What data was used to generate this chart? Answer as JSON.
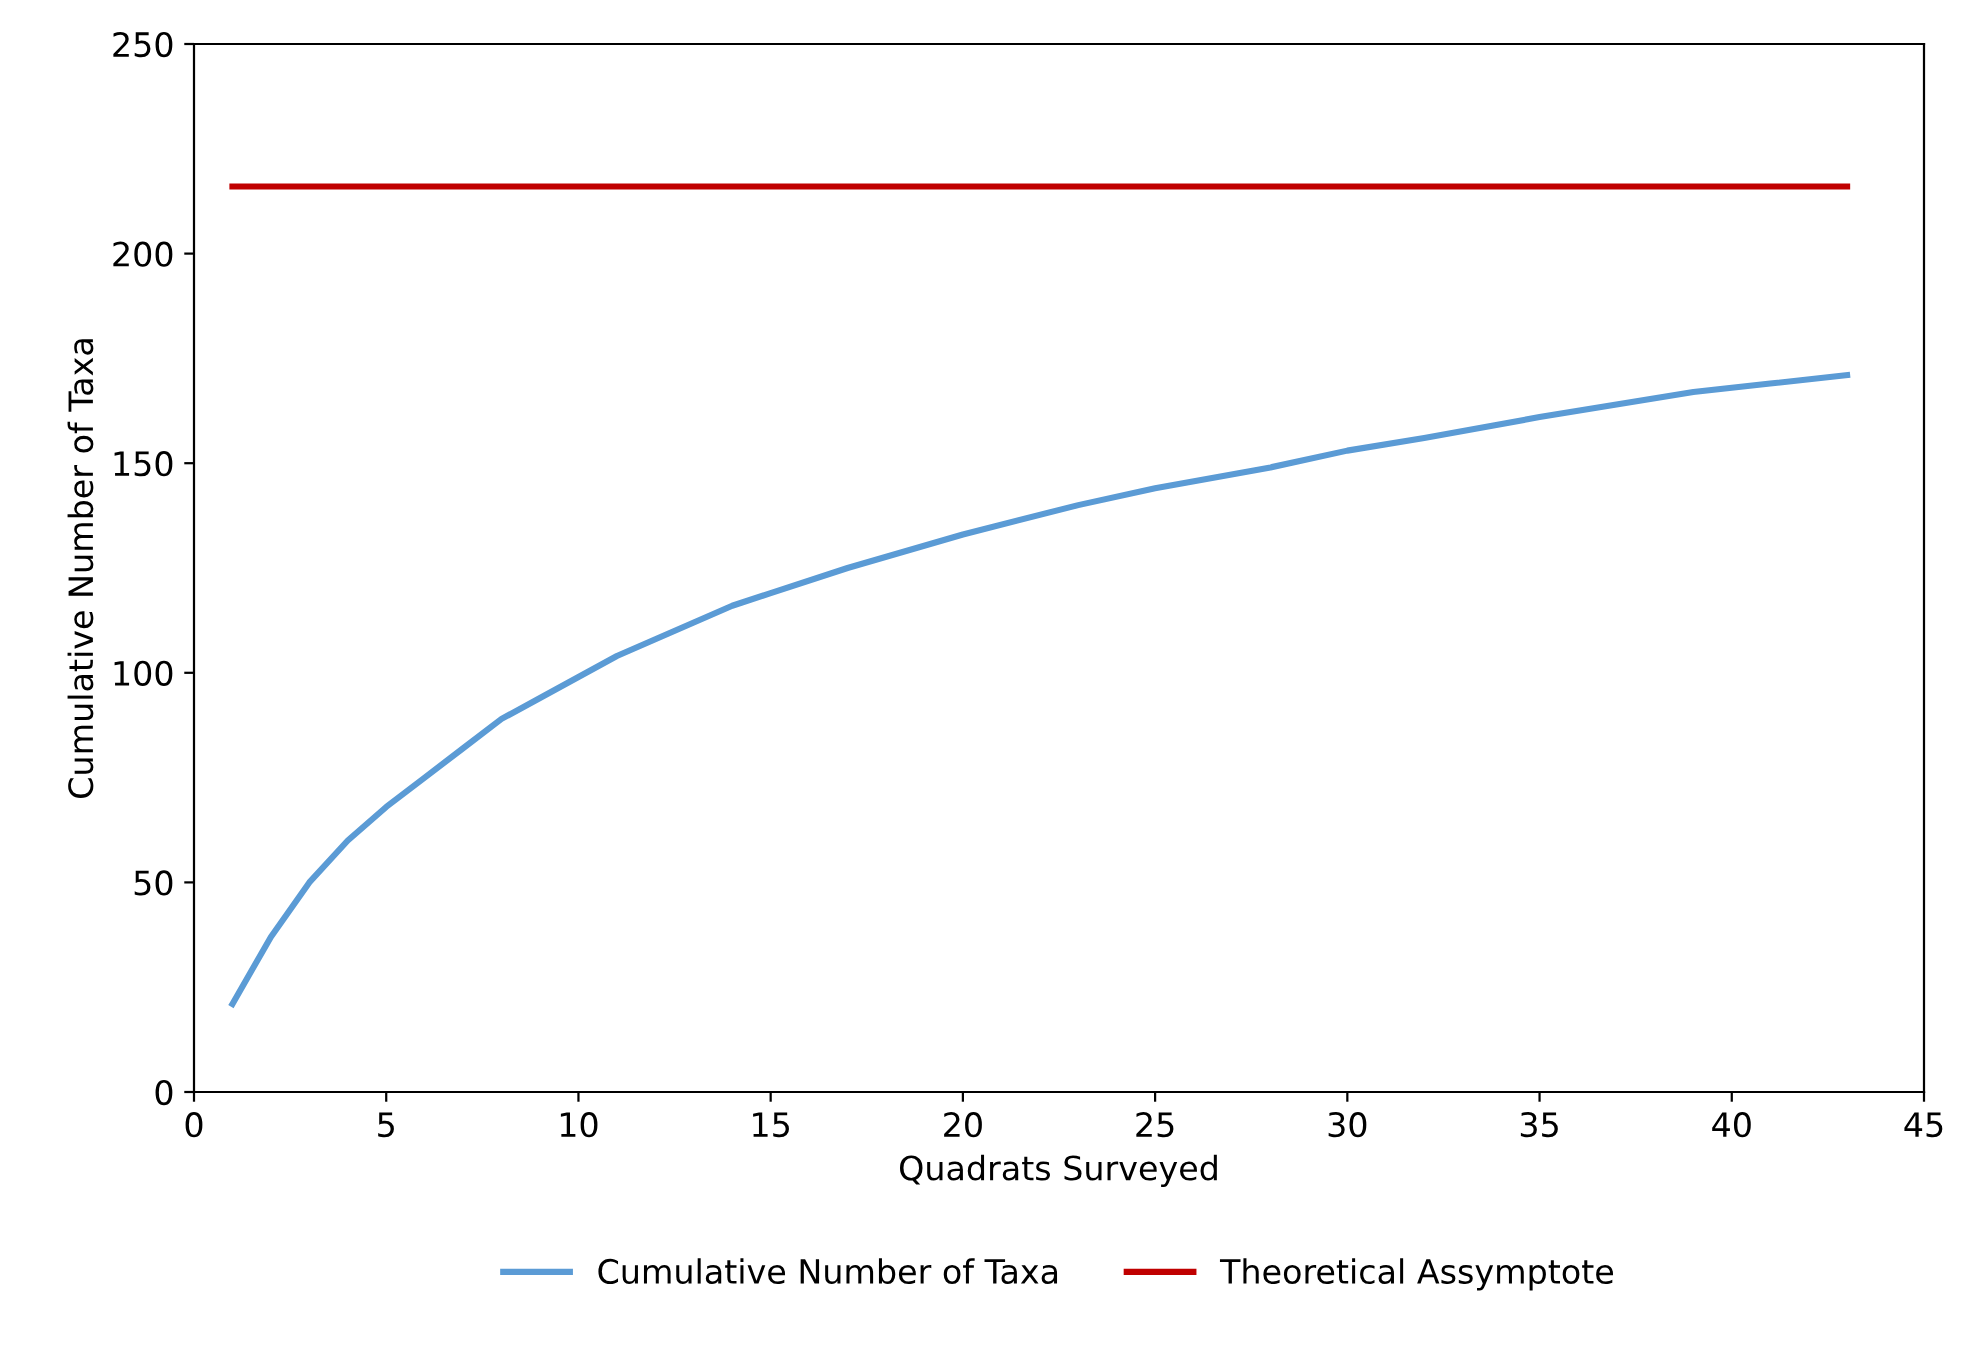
{
  "chart_data": {
    "type": "line",
    "xlabel": "Quadrats Surveyed",
    "ylabel": "Cumulative Number of Taxa",
    "series": [
      {
        "name": "Cumulative Number of Taxa",
        "color": "#5b9bd5",
        "x": [
          1,
          2,
          3,
          4,
          5,
          6,
          7,
          8,
          9,
          10,
          11,
          12,
          13,
          14,
          15,
          17,
          20,
          23,
          25,
          28,
          30,
          32,
          35,
          37,
          39,
          41,
          43
        ],
        "values": [
          21,
          37,
          50,
          60,
          68,
          75,
          82,
          89,
          94,
          99,
          104,
          108,
          112,
          116,
          119,
          125,
          133,
          140,
          144,
          149,
          153,
          156,
          161,
          164,
          167,
          169,
          171
        ]
      },
      {
        "name": "Theoretical Assymptote",
        "color": "#c00000",
        "x": [
          1,
          43
        ],
        "values": [
          216,
          216
        ]
      }
    ],
    "xlim": [
      0,
      45
    ],
    "xticks": [
      0,
      5,
      10,
      15,
      20,
      25,
      30,
      35,
      40,
      45
    ],
    "ylim": [
      0,
      250
    ],
    "yticks": [
      0,
      50,
      100,
      150,
      200,
      250
    ],
    "grid": false,
    "legend": "bottom",
    "line_style": "solid",
    "marker": "none"
  }
}
